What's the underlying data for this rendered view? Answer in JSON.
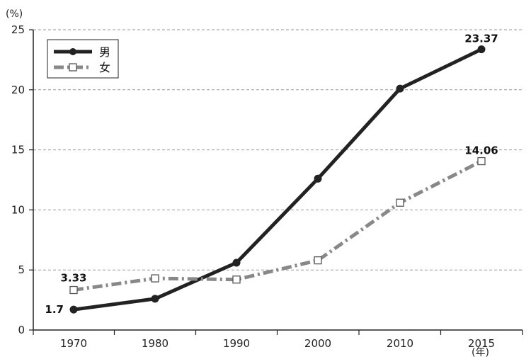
{
  "chart_data": {
    "type": "line",
    "y_unit": "(%)",
    "x_unit": "(年)",
    "x": [
      "1970",
      "1980",
      "1990",
      "2000",
      "2010",
      "2015"
    ],
    "ylim": [
      0,
      25
    ],
    "yticks": [
      "0",
      "5",
      "10",
      "15",
      "20",
      "25"
    ],
    "grid": "horizontal dashed",
    "legend_position": "top-left",
    "series": [
      {
        "name": "男",
        "color": "#222222",
        "marker": "filled-circle",
        "line_style": "solid",
        "values": [
          1.7,
          2.6,
          5.6,
          12.6,
          20.1,
          23.37
        ]
      },
      {
        "name": "女",
        "color": "#888888",
        "marker": "open-square",
        "line_style": "dash-dot",
        "values": [
          3.33,
          4.3,
          4.2,
          5.8,
          10.6,
          14.06
        ]
      }
    ],
    "data_labels": [
      {
        "series": 0,
        "index": 0,
        "text": "1.7"
      },
      {
        "series": 0,
        "index": 5,
        "text": "23.37"
      },
      {
        "series": 1,
        "index": 0,
        "text": "3.33"
      },
      {
        "series": 1,
        "index": 5,
        "text": "14.06"
      }
    ]
  }
}
